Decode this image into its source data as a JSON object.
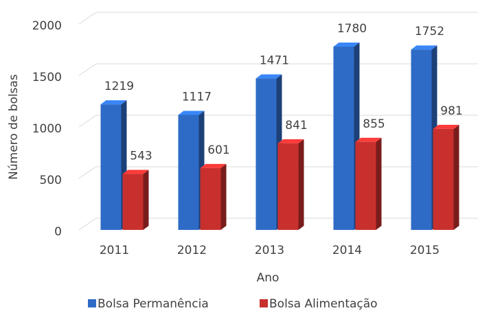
{
  "chart_data": {
    "type": "bar",
    "categories": [
      "2011",
      "2012",
      "2013",
      "2014",
      "2015"
    ],
    "series": [
      {
        "name": "Bolsa Permanência",
        "color": "#2e6bc6",
        "values": [
          1219,
          1117,
          1471,
          1780,
          1752
        ]
      },
      {
        "name": "Bolsa Alimentação",
        "color": "#c8302e",
        "values": [
          543,
          601,
          841,
          855,
          981
        ]
      }
    ],
    "xlabel": "Ano",
    "ylabel": "Número de bolsas",
    "ylim": [
      0,
      2000
    ],
    "yticks": [
      0,
      500,
      1000,
      1500,
      2000
    ],
    "grid": true,
    "legend": "bottom"
  }
}
